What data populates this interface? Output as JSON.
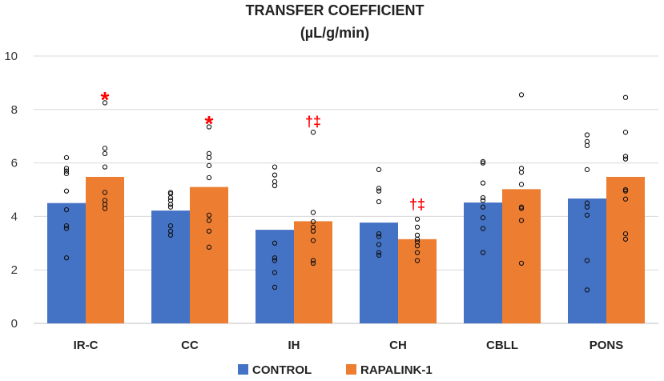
{
  "chart_data": {
    "type": "bar",
    "title": "TRANSFER COEFFICIENT",
    "subtitle": "(µL/g/min)",
    "xlabel": "",
    "ylabel": "",
    "ylim": [
      0,
      10
    ],
    "yticks": [
      0,
      2,
      4,
      6,
      8,
      10
    ],
    "grid": true,
    "legend_position": "bottom",
    "categories": [
      "IR-C",
      "CC",
      "IH",
      "CH",
      "CBLL",
      "PONS"
    ],
    "series": [
      {
        "name": "CONTROL",
        "color": "#4472c4",
        "values": [
          4.5,
          4.22,
          3.5,
          3.77,
          4.52,
          4.67
        ],
        "points": [
          [
            2.45,
            3.55,
            3.65,
            4.25,
            4.95,
            5.6,
            5.7,
            5.8,
            6.2
          ],
          [
            3.3,
            3.45,
            3.65,
            4.35,
            4.45,
            4.6,
            4.7,
            4.85,
            4.9
          ],
          [
            1.35,
            1.9,
            2.35,
            2.45,
            3.0,
            5.15,
            5.3,
            5.55,
            5.85
          ],
          [
            2.55,
            2.65,
            2.95,
            3.25,
            3.35,
            4.55,
            4.95,
            5.05,
            5.75
          ],
          [
            2.65,
            3.55,
            3.95,
            4.35,
            4.6,
            4.7,
            5.25,
            6.0,
            6.05
          ],
          [
            1.25,
            2.35,
            4.05,
            4.35,
            4.5,
            5.75,
            6.65,
            6.8,
            7.05
          ]
        ]
      },
      {
        "name": "RAPALINK-1",
        "color": "#ed7d31",
        "values": [
          5.48,
          5.1,
          3.82,
          3.15,
          5.02,
          5.48
        ],
        "points": [
          [
            4.3,
            4.45,
            4.6,
            4.9,
            5.85,
            6.35,
            6.55,
            8.25
          ],
          [
            2.85,
            3.45,
            3.85,
            4.05,
            5.45,
            5.9,
            6.2,
            6.35,
            7.35
          ],
          [
            2.25,
            2.35,
            3.1,
            3.45,
            3.6,
            3.8,
            4.15,
            7.15
          ],
          [
            2.35,
            2.65,
            2.9,
            3.05,
            3.15,
            3.3,
            3.6,
            3.9
          ],
          [
            2.25,
            3.85,
            4.3,
            4.35,
            5.2,
            5.65,
            5.8,
            8.55
          ],
          [
            3.15,
            3.35,
            4.65,
            4.95,
            5.0,
            6.15,
            6.25,
            7.15,
            8.45
          ]
        ]
      }
    ],
    "annotations": [
      {
        "category": "IR-C",
        "series": "RAPALINK-1",
        "text": "*",
        "y": 8.5
      },
      {
        "category": "CC",
        "series": "RAPALINK-1",
        "text": "*",
        "y": 7.6
      },
      {
        "category": "IH",
        "series": "RAPALINK-1",
        "text": "†‡",
        "y": 7.55
      },
      {
        "category": "CH",
        "series": "RAPALINK-1",
        "text": "†‡",
        "y": 4.45
      }
    ]
  }
}
